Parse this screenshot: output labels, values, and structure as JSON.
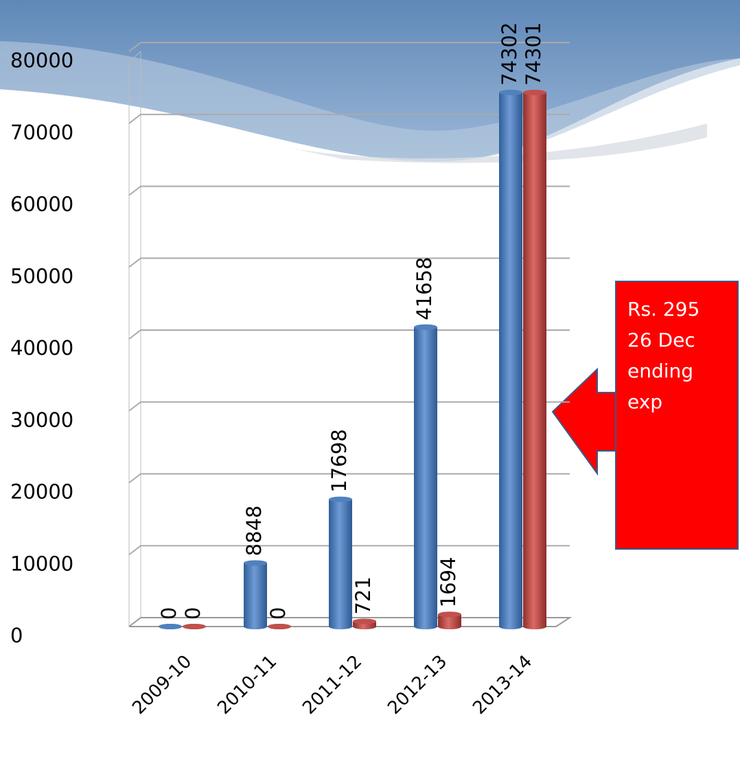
{
  "chart_data": {
    "type": "bar3d",
    "categories": [
      "2009-10",
      "2010-11",
      "2011-12",
      "2012-13",
      "2013-14"
    ],
    "series": [
      {
        "color": "#4f81bd",
        "values": [
          0,
          8848,
          17698,
          41658,
          74302
        ]
      },
      {
        "color": "#c0504d",
        "values": [
          0,
          0,
          721,
          1694,
          74301
        ]
      }
    ],
    "ylim": [
      0,
      80000
    ],
    "yticks": [
      0,
      10000,
      20000,
      30000,
      40000,
      50000,
      60000,
      70000,
      80000
    ],
    "grid": true,
    "annotation": "Rs. 29526 Dec ending exp"
  }
}
